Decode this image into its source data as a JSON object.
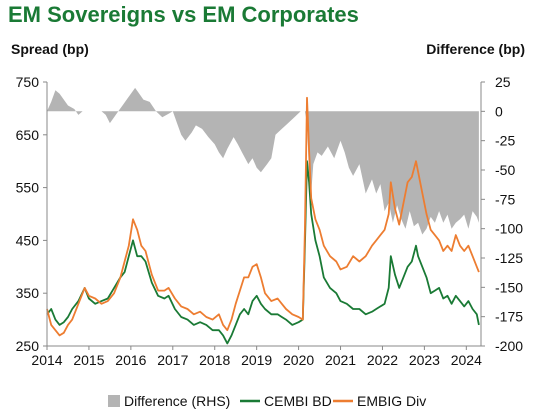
{
  "title": "EM Sovereigns vs EM Corporates",
  "chart_data": {
    "type": "line",
    "ylabel": "Spread (bp)",
    "ylabel_right": "Difference (bp)",
    "x_ticks": [
      "2014",
      "2015",
      "2016",
      "2017",
      "2018",
      "2019",
      "2020",
      "2021",
      "2022",
      "2023",
      "2024"
    ],
    "xlim": [
      2014.0,
      2024.35
    ],
    "ylim": [
      250,
      750
    ],
    "yticks": [
      250,
      350,
      450,
      550,
      650,
      750
    ],
    "ylim_right": [
      -200,
      25
    ],
    "yticks_right": [
      -200,
      -175,
      -150,
      -125,
      -100,
      -75,
      -50,
      -25,
      0,
      25
    ],
    "grid": false,
    "legend_position": "bottom",
    "series": [
      {
        "name": "Difference (RHS)",
        "type": "area",
        "axis": "right",
        "color": "#b4b4b4",
        "x": [
          2014.0,
          2014.1,
          2014.2,
          2014.3,
          2014.4,
          2014.5,
          2014.65,
          2014.75,
          2014.85,
          2015.0,
          2015.15,
          2015.3,
          2015.4,
          2015.5,
          2015.6,
          2015.7,
          2015.8,
          2016.0,
          2016.1,
          2016.2,
          2016.3,
          2016.45,
          2016.6,
          2016.75,
          2016.9,
          2017.0,
          2017.1,
          2017.2,
          2017.3,
          2017.45,
          2017.55,
          2017.7,
          2017.85,
          2018.0,
          2018.1,
          2018.2,
          2018.3,
          2018.45,
          2018.55,
          2018.65,
          2018.8,
          2018.9,
          2019.0,
          2019.1,
          2019.25,
          2019.35,
          2019.45,
          2019.6,
          2019.75,
          2019.9,
          2020.05,
          2020.15,
          2020.2,
          2020.25,
          2020.3,
          2020.35,
          2020.45,
          2020.55,
          2020.7,
          2020.85,
          2021.0,
          2021.1,
          2021.2,
          2021.3,
          2021.45,
          2021.6,
          2021.75,
          2021.85,
          2021.95,
          2022.05,
          2022.15,
          2022.25,
          2022.35,
          2022.45,
          2022.55,
          2022.65,
          2022.75,
          2022.85,
          2022.95,
          2023.05,
          2023.15,
          2023.25,
          2023.35,
          2023.45,
          2023.55,
          2023.65,
          2023.75,
          2023.85,
          2023.95,
          2024.05,
          2024.15,
          2024.25,
          2024.3
        ],
        "values": [
          0,
          8,
          18,
          15,
          10,
          5,
          2,
          -3,
          0,
          0,
          0,
          0,
          -3,
          -10,
          -5,
          0,
          5,
          15,
          20,
          15,
          10,
          8,
          0,
          -5,
          -2,
          0,
          -10,
          -20,
          -25,
          -18,
          -12,
          -15,
          -22,
          -28,
          -35,
          -40,
          -32,
          -22,
          -28,
          -35,
          -45,
          -40,
          -48,
          -52,
          -45,
          -40,
          -20,
          -15,
          -10,
          -5,
          0,
          0,
          -10,
          -55,
          -70,
          -45,
          -35,
          -38,
          -30,
          -40,
          -25,
          -35,
          -48,
          -55,
          -45,
          -70,
          -58,
          -70,
          -62,
          -85,
          -78,
          -95,
          -80,
          -92,
          -100,
          -85,
          -98,
          -95,
          -105,
          -100,
          -90,
          -95,
          -85,
          -95,
          -88,
          -100,
          -95,
          -92,
          -88,
          -100,
          -85,
          -90,
          -95
        ]
      },
      {
        "name": "CEMBI BD",
        "type": "line",
        "axis": "left",
        "color": "#1a7a35",
        "x": [
          2014.0,
          2014.1,
          2014.2,
          2014.3,
          2014.4,
          2014.5,
          2014.6,
          2014.75,
          2014.9,
          2015.0,
          2015.15,
          2015.3,
          2015.45,
          2015.6,
          2015.75,
          2015.85,
          2015.95,
          2016.05,
          2016.15,
          2016.25,
          2016.35,
          2016.5,
          2016.65,
          2016.8,
          2016.9,
          2017.05,
          2017.2,
          2017.35,
          2017.5,
          2017.65,
          2017.8,
          2017.95,
          2018.1,
          2018.2,
          2018.3,
          2018.4,
          2018.5,
          2018.6,
          2018.7,
          2018.8,
          2018.9,
          2019.0,
          2019.1,
          2019.2,
          2019.35,
          2019.5,
          2019.6,
          2019.7,
          2019.85,
          2020.0,
          2020.1,
          2020.15,
          2020.2,
          2020.25,
          2020.3,
          2020.4,
          2020.5,
          2020.6,
          2020.75,
          2020.9,
          2021.0,
          2021.15,
          2021.3,
          2021.45,
          2021.6,
          2021.75,
          2021.85,
          2021.95,
          2022.05,
          2022.15,
          2022.2,
          2022.3,
          2022.4,
          2022.5,
          2022.6,
          2022.7,
          2022.8,
          2022.85,
          2022.95,
          2023.05,
          2023.15,
          2023.25,
          2023.35,
          2023.45,
          2023.55,
          2023.65,
          2023.75,
          2023.85,
          2023.95,
          2024.05,
          2024.15,
          2024.25,
          2024.3
        ],
        "values": [
          310,
          320,
          300,
          290,
          295,
          305,
          320,
          335,
          360,
          340,
          330,
          335,
          340,
          360,
          380,
          390,
          420,
          450,
          420,
          420,
          410,
          370,
          345,
          340,
          345,
          320,
          305,
          300,
          290,
          295,
          290,
          280,
          280,
          270,
          255,
          270,
          290,
          310,
          320,
          310,
          335,
          345,
          330,
          320,
          310,
          310,
          305,
          300,
          290,
          295,
          300,
          440,
          600,
          560,
          500,
          450,
          420,
          380,
          360,
          350,
          335,
          330,
          320,
          320,
          310,
          315,
          320,
          325,
          330,
          360,
          420,
          385,
          360,
          380,
          400,
          410,
          440,
          420,
          400,
          380,
          350,
          355,
          360,
          340,
          345,
          330,
          345,
          335,
          325,
          335,
          320,
          310,
          290
        ]
      },
      {
        "name": "EMBIG Div",
        "type": "line",
        "axis": "left",
        "color": "#ed7d31",
        "x": [
          2014.0,
          2014.1,
          2014.2,
          2014.3,
          2014.4,
          2014.5,
          2014.6,
          2014.75,
          2014.9,
          2015.0,
          2015.15,
          2015.3,
          2015.45,
          2015.6,
          2015.75,
          2015.85,
          2015.95,
          2016.05,
          2016.15,
          2016.25,
          2016.35,
          2016.5,
          2016.65,
          2016.8,
          2016.9,
          2017.05,
          2017.2,
          2017.35,
          2017.5,
          2017.65,
          2017.8,
          2017.95,
          2018.1,
          2018.2,
          2018.3,
          2018.4,
          2018.5,
          2018.6,
          2018.7,
          2018.8,
          2018.9,
          2019.0,
          2019.1,
          2019.2,
          2019.35,
          2019.5,
          2019.6,
          2019.7,
          2019.85,
          2020.0,
          2020.1,
          2020.15,
          2020.2,
          2020.25,
          2020.3,
          2020.4,
          2020.5,
          2020.6,
          2020.75,
          2020.9,
          2021.0,
          2021.15,
          2021.3,
          2021.45,
          2021.6,
          2021.75,
          2021.85,
          2021.95,
          2022.05,
          2022.15,
          2022.2,
          2022.3,
          2022.4,
          2022.5,
          2022.6,
          2022.7,
          2022.8,
          2022.85,
          2022.95,
          2023.05,
          2023.15,
          2023.25,
          2023.35,
          2023.45,
          2023.55,
          2023.65,
          2023.75,
          2023.85,
          2023.95,
          2024.05,
          2024.15,
          2024.25,
          2024.3
        ],
        "values": [
          320,
          290,
          280,
          270,
          275,
          290,
          300,
          330,
          360,
          345,
          340,
          330,
          335,
          350,
          380,
          410,
          440,
          490,
          470,
          440,
          430,
          385,
          355,
          355,
          360,
          340,
          325,
          320,
          310,
          315,
          305,
          300,
          310,
          290,
          280,
          300,
          330,
          355,
          380,
          380,
          400,
          405,
          380,
          350,
          335,
          340,
          330,
          320,
          310,
          305,
          300,
          470,
          720,
          620,
          530,
          490,
          470,
          440,
          420,
          410,
          395,
          400,
          420,
          410,
          420,
          440,
          450,
          460,
          470,
          500,
          560,
          510,
          480,
          520,
          560,
          570,
          600,
          580,
          540,
          500,
          470,
          460,
          450,
          430,
          440,
          430,
          460,
          440,
          430,
          440,
          420,
          400,
          390
        ]
      }
    ]
  }
}
